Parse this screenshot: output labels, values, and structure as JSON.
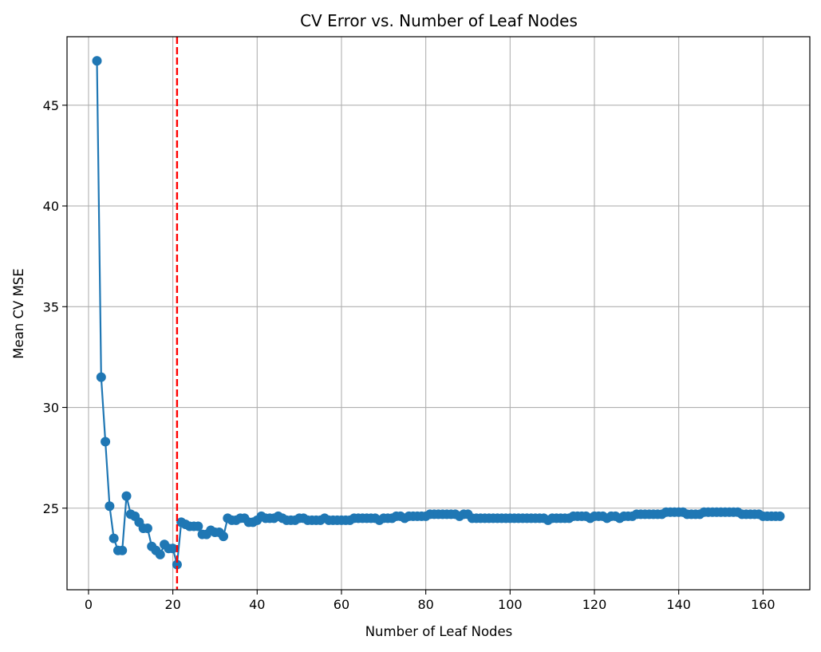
{
  "chart_data": {
    "type": "line",
    "title": "CV Error vs. Number of Leaf Nodes",
    "xlabel": "Number of Leaf Nodes",
    "ylabel": "Mean CV MSE",
    "xlim": [
      -5.1,
      171.1
    ],
    "ylim": [
      20.95,
      48.4
    ],
    "xticks": [
      0,
      20,
      40,
      60,
      80,
      100,
      120,
      140,
      160
    ],
    "yticks": [
      25,
      30,
      35,
      40,
      45
    ],
    "grid": true,
    "series_color": "#1f77b4",
    "vline": {
      "x": 21,
      "color": "#ff0000",
      "style": "dashed"
    },
    "x": [
      2,
      3,
      4,
      5,
      6,
      7,
      8,
      9,
      10,
      11,
      12,
      13,
      14,
      15,
      16,
      17,
      18,
      19,
      20,
      21,
      22,
      23,
      24,
      25,
      26,
      27,
      28,
      29,
      30,
      31,
      32,
      33,
      34,
      35,
      36,
      37,
      38,
      39,
      40,
      41,
      42,
      43,
      44,
      45,
      46,
      47,
      48,
      49,
      50,
      51,
      52,
      53,
      54,
      55,
      56,
      57,
      58,
      59,
      60,
      61,
      62,
      63,
      64,
      65,
      66,
      67,
      68,
      69,
      70,
      71,
      72,
      73,
      74,
      75,
      76,
      77,
      78,
      79,
      80,
      81,
      82,
      83,
      84,
      85,
      86,
      87,
      88,
      89,
      90,
      91,
      92,
      93,
      94,
      95,
      96,
      97,
      98,
      99,
      100,
      101,
      102,
      103,
      104,
      105,
      106,
      107,
      108,
      109,
      110,
      111,
      112,
      113,
      114,
      115,
      116,
      117,
      118,
      119,
      120,
      121,
      122,
      123,
      124,
      125,
      126,
      127,
      128,
      129,
      130,
      131,
      132,
      133,
      134,
      135,
      136,
      137,
      138,
      139,
      140,
      141,
      142,
      143,
      144,
      145,
      146,
      147,
      148,
      149,
      150,
      151,
      152,
      153,
      154,
      155,
      156,
      157,
      158,
      159,
      160,
      161,
      162,
      163,
      164
    ],
    "y": [
      47.2,
      31.5,
      28.3,
      25.1,
      23.5,
      22.9,
      22.9,
      25.6,
      24.7,
      24.6,
      24.3,
      24.0,
      24.0,
      23.1,
      22.9,
      22.7,
      23.2,
      23.0,
      23.0,
      22.2,
      24.3,
      24.2,
      24.1,
      24.1,
      24.1,
      23.7,
      23.7,
      23.9,
      23.8,
      23.8,
      23.6,
      24.5,
      24.4,
      24.4,
      24.5,
      24.5,
      24.3,
      24.3,
      24.4,
      24.6,
      24.5,
      24.5,
      24.5,
      24.6,
      24.5,
      24.4,
      24.4,
      24.4,
      24.5,
      24.5,
      24.4,
      24.4,
      24.4,
      24.4,
      24.5,
      24.4,
      24.4,
      24.4,
      24.4,
      24.4,
      24.4,
      24.5,
      24.5,
      24.5,
      24.5,
      24.5,
      24.5,
      24.4,
      24.5,
      24.5,
      24.5,
      24.6,
      24.6,
      24.5,
      24.6,
      24.6,
      24.6,
      24.6,
      24.6,
      24.7,
      24.7,
      24.7,
      24.7,
      24.7,
      24.7,
      24.7,
      24.6,
      24.7,
      24.7,
      24.5,
      24.5,
      24.5,
      24.5,
      24.5,
      24.5,
      24.5,
      24.5,
      24.5,
      24.5,
      24.5,
      24.5,
      24.5,
      24.5,
      24.5,
      24.5,
      24.5,
      24.5,
      24.4,
      24.5,
      24.5,
      24.5,
      24.5,
      24.5,
      24.6,
      24.6,
      24.6,
      24.6,
      24.5,
      24.6,
      24.6,
      24.6,
      24.5,
      24.6,
      24.6,
      24.5,
      24.6,
      24.6,
      24.6,
      24.7,
      24.7,
      24.7,
      24.7,
      24.7,
      24.7,
      24.7,
      24.8,
      24.8,
      24.8,
      24.8,
      24.8,
      24.7,
      24.7,
      24.7,
      24.7,
      24.8,
      24.8,
      24.8,
      24.8,
      24.8,
      24.8,
      24.8,
      24.8,
      24.8,
      24.7,
      24.7,
      24.7,
      24.7,
      24.7,
      24.6,
      24.6,
      24.6,
      24.6,
      24.6
    ]
  }
}
